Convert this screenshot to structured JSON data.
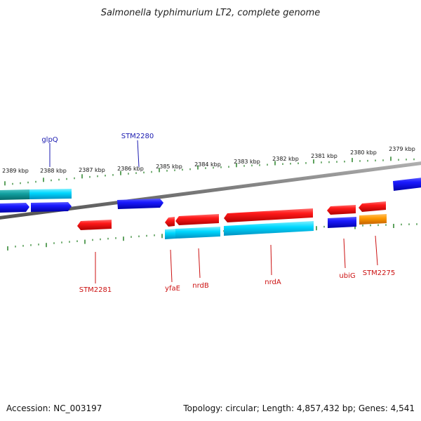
{
  "header": {
    "title": "Salmonella typhimurium LT2, complete genome"
  },
  "footer": {
    "accession": "Accession: NC_003197",
    "summary": "Topology: circular; Length: 4,857,432 bp; Genes: 4,541"
  },
  "colors": {
    "backbone": "#808080",
    "tick": "#1a7a1a",
    "forward_gene": "#1a1aff",
    "reverse_gene": "#ff1a1a",
    "forward_cds": "#00d8ff",
    "other_feature": "#ff9900",
    "forward_label": "#1a1ab0",
    "reverse_label": "#cc1111"
  },
  "scale_labels": [
    "2389 kbp",
    "2388 kbp",
    "2387 kbp",
    "2386 kbp",
    "2385 kbp",
    "2384 kbp",
    "2383 kbp",
    "2382 kbp",
    "2381 kbp",
    "2380 kbp",
    "2379 kbp"
  ],
  "forward_labels": [
    "glpQ",
    "STM2280"
  ],
  "reverse_labels": [
    "STM2281",
    "yfaE",
    "nrdB",
    "nrdA",
    "ubiG",
    "STM2275"
  ]
}
